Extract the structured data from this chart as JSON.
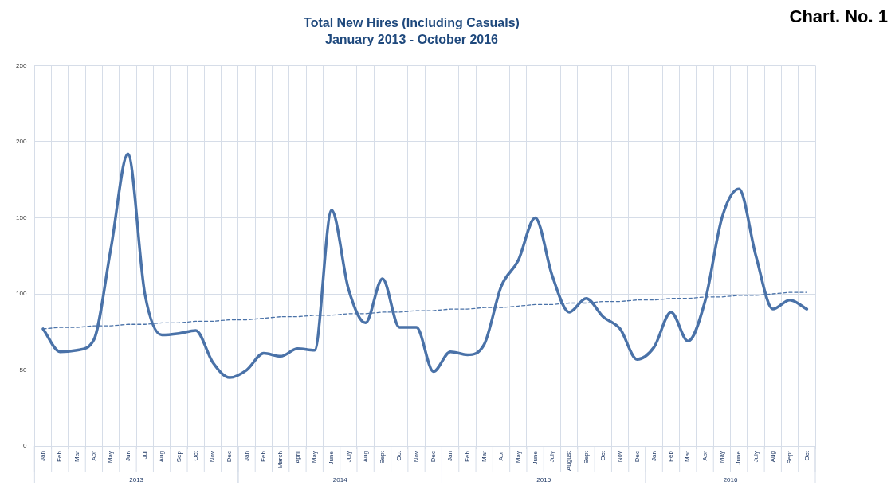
{
  "chart_data": {
    "type": "line",
    "title": "Total New Hires (Including Casuals)",
    "subtitle": "January 2013 - October 2016",
    "categories": [
      "Jan",
      "Feb",
      "Mar",
      "Apr",
      "May",
      "Jun",
      "Jul",
      "Aug",
      "Sep",
      "Oct",
      "Nov",
      "Dec",
      "Jan",
      "Feb",
      "March",
      "April",
      "May",
      "June",
      "July",
      "Aug",
      "Sept",
      "Oct",
      "Nov",
      "Dec",
      "Jan",
      "Feb",
      "Mar",
      "Apr",
      "May",
      "June",
      "July",
      "August",
      "Sept",
      "Oct",
      "Nov",
      "Dec",
      "Jan",
      "Feb",
      "Mar",
      "Apr",
      "May",
      "June",
      "July",
      "Aug",
      "Sept",
      "Oct"
    ],
    "series": [
      {
        "color": "#4a72a8",
        "line_style": "solid",
        "values": [
          77,
          62,
          63,
          70,
          130,
          192,
          100,
          73,
          74,
          76,
          55,
          45,
          50,
          61,
          59,
          64,
          63,
          155,
          103,
          81,
          110,
          78,
          78,
          49,
          62,
          60,
          67,
          105,
          122,
          150,
          112,
          88,
          97,
          85,
          77,
          57,
          65,
          88,
          69,
          95,
          150,
          169,
          125,
          90,
          96,
          90
        ]
      },
      {
        "color": "#4a72a8",
        "line_style": "dashed",
        "values": [
          77,
          78,
          78,
          79,
          79,
          80,
          80,
          81,
          81,
          82,
          82,
          83,
          83,
          84,
          85,
          85,
          86,
          86,
          87,
          87,
          88,
          88,
          89,
          89,
          90,
          90,
          91,
          91,
          92,
          93,
          93,
          94,
          94,
          95,
          95,
          96,
          96,
          97,
          97,
          98,
          98,
          99,
          99,
          100,
          101,
          101
        ]
      }
    ],
    "ylim": [
      0,
      250
    ],
    "yticks": [
      0,
      50,
      100,
      150,
      200,
      250
    ],
    "grid": true,
    "legend": false,
    "marker": "none",
    "annotations": [
      "2013",
      "2014",
      "2015",
      "2016",
      "Chart. No. 1"
    ]
  }
}
